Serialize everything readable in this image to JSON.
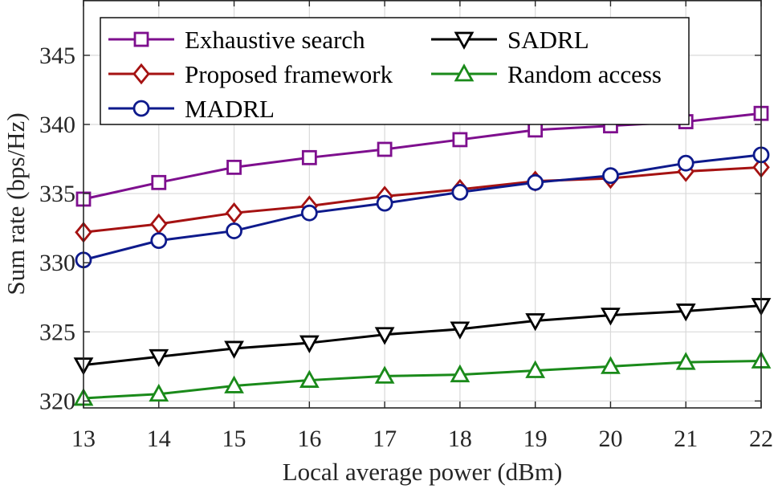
{
  "chart_data": {
    "type": "line",
    "title": "",
    "xlabel": "Local average power (dBm)",
    "ylabel": "Sum rate (bps/Hz)",
    "xlim": [
      13,
      22
    ],
    "ylim": [
      319.5,
      349
    ],
    "x_ticks": [
      13,
      14,
      15,
      16,
      17,
      18,
      19,
      20,
      21,
      22
    ],
    "y_ticks": [
      320,
      325,
      330,
      335,
      340,
      345
    ],
    "grid": true,
    "legend_position": "top-left",
    "x": [
      13,
      14,
      15,
      16,
      17,
      18,
      19,
      20,
      21,
      22
    ],
    "series": [
      {
        "name": "Exhaustive search",
        "marker": "square",
        "color": "#7E0F8E",
        "values": [
          334.6,
          335.8,
          336.9,
          337.6,
          338.2,
          338.9,
          339.6,
          339.9,
          340.2,
          340.8
        ]
      },
      {
        "name": "Proposed framework",
        "marker": "diamond",
        "color": "#A51212",
        "values": [
          332.2,
          332.8,
          333.6,
          334.1,
          334.8,
          335.3,
          335.9,
          336.1,
          336.6,
          336.9
        ]
      },
      {
        "name": "MADRL",
        "marker": "circle",
        "color": "#0E1A8C",
        "values": [
          330.2,
          331.6,
          332.3,
          333.6,
          334.3,
          335.1,
          335.8,
          336.3,
          337.2,
          337.8
        ]
      },
      {
        "name": "SADRL",
        "marker": "triangle-down",
        "color": "#000000",
        "values": [
          322.6,
          323.2,
          323.8,
          324.2,
          324.8,
          325.2,
          325.8,
          326.2,
          326.5,
          326.9
        ]
      },
      {
        "name": "Random access",
        "marker": "triangle-up",
        "color": "#1A8A1A",
        "values": [
          320.2,
          320.5,
          321.1,
          321.5,
          321.8,
          321.9,
          322.2,
          322.5,
          322.8,
          322.9
        ]
      }
    ]
  }
}
